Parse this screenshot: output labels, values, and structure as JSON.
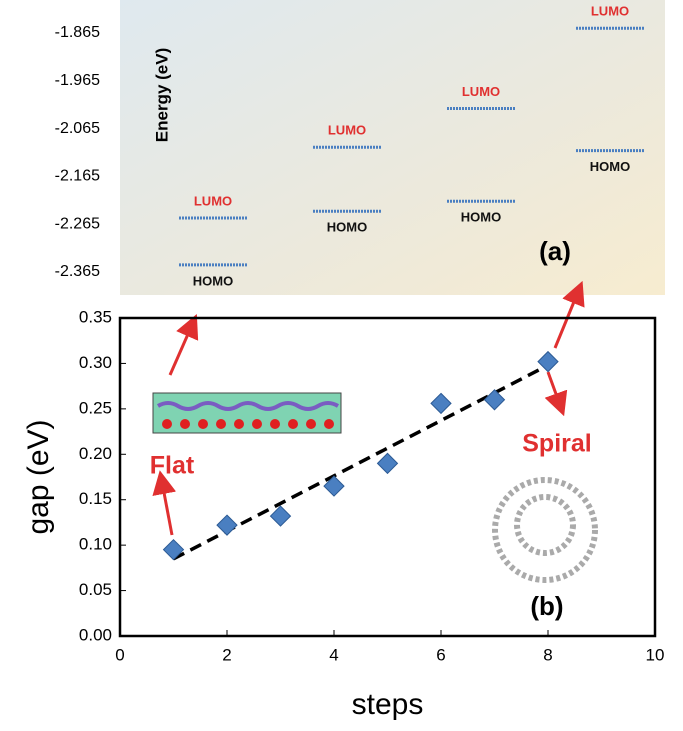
{
  "chart_data": [
    {
      "type": "levels",
      "ylabel": "Energy (eV)",
      "annotation": "(a)",
      "categories": [
        null,
        null,
        null,
        null
      ],
      "series": [
        {
          "name": "LUMO",
          "color": "#4a7fc1",
          "label_color": "#e03030",
          "values": [
            -2.252,
            -2.104,
            -2.023,
            -1.855
          ]
        },
        {
          "name": "HOMO",
          "color": "#4a7fc1",
          "label_color": "#111111",
          "values": [
            -2.35,
            -2.238,
            -2.217,
            -2.111
          ]
        }
      ],
      "ylim": [
        -2.41,
        -1.8
      ],
      "yticks": [
        -1.865,
        -1.965,
        -2.065,
        -2.165,
        -2.265,
        -2.365
      ]
    },
    {
      "type": "scatter",
      "xlabel": "steps",
      "ylabel": "gap (eV)",
      "annotation": "(b)",
      "labels": [
        "Flat",
        "Spiral"
      ],
      "x": [
        1,
        2,
        3,
        4,
        5,
        6,
        7,
        8
      ],
      "color": "#4a7fc1",
      "values": [
        0.095,
        0.122,
        0.132,
        0.165,
        0.19,
        0.256,
        0.26,
        0.302
      ],
      "trendline": {
        "x": [
          1,
          8
        ],
        "values": [
          0.085,
          0.298
        ]
      },
      "xlim": [
        0,
        10
      ],
      "xticks": [
        0,
        2,
        4,
        6,
        8,
        10
      ],
      "ylim": [
        0,
        0.35
      ],
      "yticks": [
        {
          "value": 0,
          "label": "0.00"
        },
        0.05,
        {
          "value": 0.1,
          "label": "0.10"
        },
        0.15,
        {
          "value": 0.2,
          "label": "0.20"
        },
        0.25,
        {
          "value": 0.3,
          "label": "0.30"
        },
        0.35
      ]
    }
  ]
}
